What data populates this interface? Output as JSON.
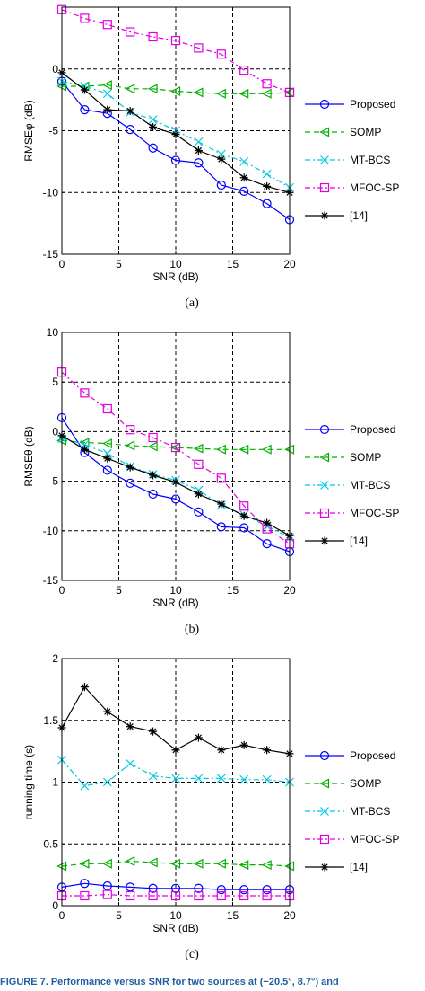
{
  "legend_labels": [
    "Proposed",
    "SOMP",
    "MT-BCS",
    "MFOC-SP",
    "[14]"
  ],
  "chart_data": [
    {
      "type": "line",
      "panel_label": "(a)",
      "xlabel": "SNR (dB)",
      "ylabel": "RMSEφ (dB)",
      "xlim": [
        0,
        20
      ],
      "ylim": [
        -15,
        5
      ],
      "xticks": [
        0,
        5,
        10,
        15,
        20
      ],
      "yticks": [
        -15,
        -10,
        -5,
        0,
        5
      ],
      "ytick_labels": [
        "-15",
        "-10",
        "-5",
        "0",
        ""
      ],
      "grid": true,
      "legend_position": "outside-right",
      "x": [
        0,
        2,
        4,
        6,
        8,
        10,
        12,
        14,
        16,
        18,
        20
      ],
      "series": [
        {
          "name": "Proposed",
          "values": [
            -1.0,
            -3.3,
            -3.6,
            -4.9,
            -6.4,
            -7.4,
            -7.6,
            -9.4,
            -9.9,
            -10.9,
            -12.2
          ]
        },
        {
          "name": "SOMP",
          "values": [
            -1.4,
            -1.4,
            -1.3,
            -1.6,
            -1.6,
            -1.8,
            -1.9,
            -2.0,
            -2.0,
            -2.0,
            -1.9
          ]
        },
        {
          "name": "MT-BCS",
          "values": [
            -1.0,
            -1.4,
            -2.0,
            -3.5,
            -4.1,
            -5.0,
            -5.9,
            -6.9,
            -7.5,
            -8.5,
            -9.6
          ]
        },
        {
          "name": "MFOC-SP",
          "values": [
            4.8,
            4.1,
            3.6,
            3.0,
            2.6,
            2.3,
            1.7,
            1.2,
            -0.1,
            -1.2,
            -1.9
          ]
        },
        {
          "name": "[14]",
          "values": [
            -0.3,
            -1.7,
            -3.3,
            -3.4,
            -4.7,
            -5.3,
            -6.6,
            -7.3,
            -8.8,
            -9.5,
            -10.0
          ]
        }
      ]
    },
    {
      "type": "line",
      "panel_label": "(b)",
      "xlabel": "SNR (dB)",
      "ylabel": "RMSEθ (dB)",
      "xlim": [
        0,
        20
      ],
      "ylim": [
        -15,
        10
      ],
      "xticks": [
        0,
        5,
        10,
        15,
        20
      ],
      "yticks": [
        -15,
        -10,
        -5,
        0,
        5,
        10
      ],
      "ytick_labels": [
        "-15",
        "-10",
        "-5",
        "0",
        "5",
        "10"
      ],
      "grid": true,
      "legend_position": "outside-right",
      "x": [
        0,
        2,
        4,
        6,
        8,
        10,
        12,
        14,
        16,
        18,
        20
      ],
      "series": [
        {
          "name": "Proposed",
          "values": [
            1.4,
            -2.1,
            -3.9,
            -5.2,
            -6.3,
            -6.8,
            -8.1,
            -9.6,
            -9.7,
            -11.3,
            -12.1
          ]
        },
        {
          "name": "SOMP",
          "values": [
            -0.9,
            -1.1,
            -1.2,
            -1.4,
            -1.5,
            -1.6,
            -1.7,
            -1.8,
            -1.8,
            -1.8,
            -1.8
          ]
        },
        {
          "name": "MT-BCS",
          "values": [
            -0.7,
            -1.3,
            -2.2,
            -3.5,
            -4.3,
            -4.9,
            -5.9,
            -7.4,
            -8.4,
            -9.5,
            -10.7
          ]
        },
        {
          "name": "MFOC-SP",
          "values": [
            6.0,
            3.9,
            2.3,
            0.2,
            -0.6,
            -1.6,
            -3.3,
            -4.7,
            -7.5,
            -9.8,
            -11.3
          ]
        },
        {
          "name": "[14]",
          "values": [
            -0.4,
            -1.8,
            -2.7,
            -3.6,
            -4.4,
            -5.1,
            -6.3,
            -7.3,
            -8.5,
            -9.2,
            -10.5
          ]
        }
      ]
    },
    {
      "type": "line",
      "panel_label": "(c)",
      "xlabel": "SNR (dB)",
      "ylabel": "running time (s)",
      "xlim": [
        0,
        20
      ],
      "ylim": [
        0,
        2
      ],
      "xticks": [
        0,
        5,
        10,
        15,
        20
      ],
      "yticks": [
        0,
        0.5,
        1,
        1.5,
        2
      ],
      "ytick_labels": [
        "0",
        "0.5",
        "1",
        "1.5",
        "2"
      ],
      "grid": true,
      "legend_position": "outside-right",
      "x": [
        0,
        2,
        4,
        6,
        8,
        10,
        12,
        14,
        16,
        18,
        20
      ],
      "series": [
        {
          "name": "Proposed",
          "values": [
            0.15,
            0.18,
            0.16,
            0.15,
            0.14,
            0.14,
            0.14,
            0.13,
            0.13,
            0.13,
            0.13
          ]
        },
        {
          "name": "SOMP",
          "values": [
            0.32,
            0.34,
            0.34,
            0.36,
            0.35,
            0.34,
            0.34,
            0.34,
            0.33,
            0.33,
            0.32
          ]
        },
        {
          "name": "MT-BCS",
          "values": [
            1.18,
            0.97,
            1.0,
            1.15,
            1.05,
            1.03,
            1.03,
            1.03,
            1.02,
            1.02,
            1.0
          ]
        },
        {
          "name": "MFOC-SP",
          "values": [
            0.08,
            0.08,
            0.09,
            0.08,
            0.08,
            0.08,
            0.08,
            0.08,
            0.08,
            0.08,
            0.08
          ]
        },
        {
          "name": "[14]",
          "values": [
            1.44,
            1.77,
            1.57,
            1.45,
            1.41,
            1.26,
            1.36,
            1.26,
            1.3,
            1.26,
            1.23
          ]
        }
      ]
    }
  ],
  "style": {
    "colors": [
      "#0000ff",
      "#00b000",
      "#00c8e0",
      "#e000e0",
      "#000000"
    ],
    "markers": [
      "circle",
      "triangle-left",
      "x",
      "square",
      "star"
    ],
    "dashes": [
      "solid",
      "dashed",
      "dashdot",
      "dashdot",
      "solid"
    ]
  },
  "caption": "FIGURE 7. Performance versus SNR for two sources at (−20.5°, 8.7°) and"
}
